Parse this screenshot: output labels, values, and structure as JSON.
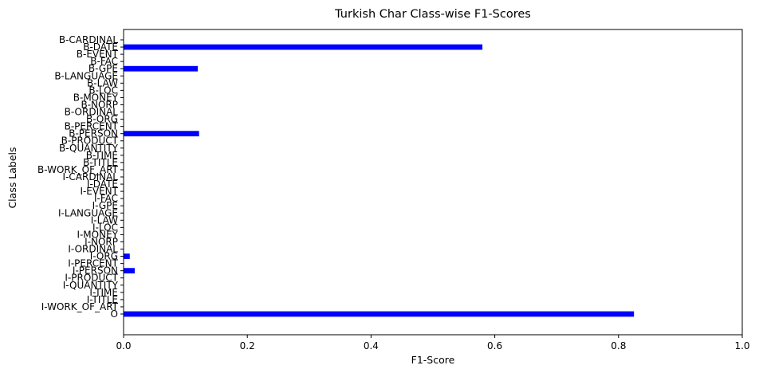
{
  "chart_data": {
    "type": "bar",
    "orientation": "horizontal",
    "title": "Turkish Char Class-wise F1-Scores",
    "xlabel": "F1-Score",
    "ylabel": "Class Labels",
    "xlim": [
      0,
      1
    ],
    "xticks": [
      "0.0",
      "0.2",
      "0.4",
      "0.6",
      "0.8",
      "1.0"
    ],
    "grid": false,
    "bar_color": "#0000ff",
    "categories": [
      "B-CARDINAL",
      "B-DATE",
      "B-EVENT",
      "B-FAC",
      "B-GPE",
      "B-LANGUAGE",
      "B-LAW",
      "B-LOC",
      "B-MONEY",
      "B-NORP",
      "B-ORDINAL",
      "B-ORG",
      "B-PERCENT",
      "B-PERSON",
      "B-PRODUCT",
      "B-QUANTITY",
      "B-TIME",
      "B-TITLE",
      "B-WORK_OF_ART",
      "I-CARDINAL",
      "I-DATE",
      "I-EVENT",
      "I-FAC",
      "I-GPE",
      "I-LANGUAGE",
      "I-LAW",
      "I-LOC",
      "I-MONEY",
      "I-NORP",
      "I-ORDINAL",
      "I-ORG",
      "I-PERCENT",
      "I-PERSON",
      "I-PRODUCT",
      "I-QUANTITY",
      "I-TIME",
      "I-TITLE",
      "I-WORK_OF_ART",
      "O"
    ],
    "values": [
      0,
      0.58,
      0,
      0,
      0.12,
      0,
      0,
      0,
      0,
      0,
      0,
      0,
      0,
      0.122,
      0,
      0,
      0,
      0,
      0,
      0,
      0,
      0,
      0,
      0,
      0,
      0,
      0,
      0,
      0,
      0,
      0.01,
      0,
      0.018,
      0,
      0,
      0,
      0,
      0,
      0.825
    ]
  }
}
